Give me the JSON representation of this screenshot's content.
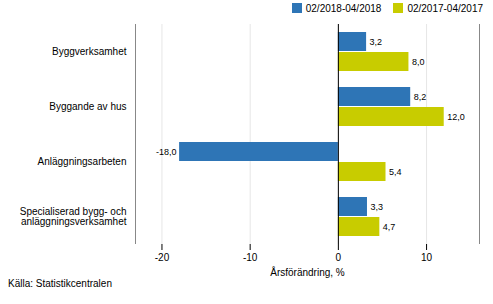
{
  "chart_data": {
    "type": "bar",
    "orientation": "horizontal",
    "categories": [
      "Byggverksamhet",
      "Byggande av hus",
      "Anläggningsarbeten",
      "Specialiserad bygg- och\nanläggningsverksamhet"
    ],
    "series": [
      {
        "name": "02/2018-04/2018",
        "color": "#2E75B6",
        "values": [
          3.2,
          8.2,
          -18.0,
          3.3
        ],
        "value_labels": [
          "3,2",
          "8,2",
          "-18,0",
          "3,3"
        ]
      },
      {
        "name": "02/2017-04/2017",
        "color": "#C8CC00",
        "values": [
          8.0,
          12.0,
          5.4,
          4.7
        ],
        "value_labels": [
          "8,0",
          "12,0",
          "5,4",
          "4,7"
        ]
      }
    ],
    "xlabel": "Årsförändring, %",
    "xlim": [
      -23,
      16
    ],
    "xticks": [
      -20,
      -10,
      0,
      10
    ],
    "grid": true,
    "legend": "upper right",
    "data_labels": true,
    "source": "Källa: Statistikcentralen"
  }
}
